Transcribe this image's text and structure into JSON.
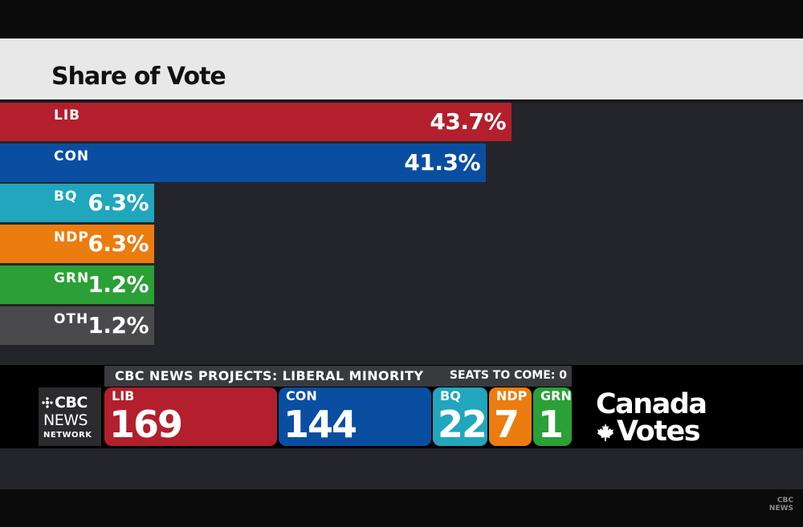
{
  "title": "Share of Vote",
  "chart_data": {
    "type": "bar",
    "title": "Share of Vote",
    "categories": [
      "LIB",
      "CON",
      "BQ",
      "NDP",
      "GRN",
      "OTH"
    ],
    "values": [
      43.7,
      41.3,
      6.3,
      6.3,
      1.2,
      1.2
    ],
    "labels": [
      "43.7%",
      "41.3%",
      "6.3%",
      "6.3%",
      "1.2%",
      "1.2%"
    ],
    "colors": [
      "#b31f2c",
      "#0a4ea1",
      "#20a6bd",
      "#eb7c10",
      "#2aa036",
      "#4a4a4d"
    ],
    "orientation": "horizontal"
  },
  "ticker": {
    "projection": "CBC NEWS PROJECTS: LIBERAL MINORITY",
    "seats_to_come": "SEATS TO COME: 0"
  },
  "logo": {
    "line1": "CBC",
    "line2": "NEWS",
    "line3": "NETWORK"
  },
  "seats": [
    {
      "party": "LIB",
      "count": "169",
      "color": "#b31f2c"
    },
    {
      "party": "CON",
      "count": "144",
      "color": "#0a4ea1"
    },
    {
      "party": "BQ",
      "count": "22",
      "color": "#20a6bd"
    },
    {
      "party": "NDP",
      "count": "7",
      "color": "#eb7c10"
    },
    {
      "party": "GRN",
      "count": "1",
      "color": "#2aa036"
    }
  ],
  "brand": {
    "line1": "Canada",
    "line2": "Votes"
  },
  "watermark": {
    "line1": "CBC",
    "line2": "NEWS"
  }
}
